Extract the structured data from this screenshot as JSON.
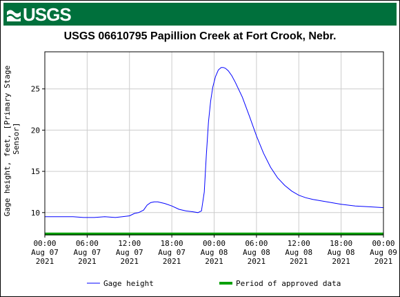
{
  "logo": {
    "text": "USGS",
    "bar_color": "#00703c"
  },
  "chart_data": {
    "type": "line",
    "title": "USGS 06610795 Papillion Creek at Fort Crook, Nebr.",
    "ylabel": "Gage height, feet, [Primary Stage\n Sensor]",
    "xlabel": "",
    "x_unit": "hours since Aug 07 2021 00:00",
    "xlim": [
      0,
      48
    ],
    "ylim": [
      7.3,
      29.5
    ],
    "grid": true,
    "x_ticks": [
      {
        "value": 0,
        "lines": [
          "00:00",
          "Aug 07",
          "2021"
        ]
      },
      {
        "value": 6,
        "lines": [
          "06:00",
          "Aug 07",
          "2021"
        ]
      },
      {
        "value": 12,
        "lines": [
          "12:00",
          "Aug 07",
          "2021"
        ]
      },
      {
        "value": 18,
        "lines": [
          "18:00",
          "Aug 07",
          "2021"
        ]
      },
      {
        "value": 24,
        "lines": [
          "00:00",
          "Aug 08",
          "2021"
        ]
      },
      {
        "value": 30,
        "lines": [
          "06:00",
          "Aug 08",
          "2021"
        ]
      },
      {
        "value": 36,
        "lines": [
          "12:00",
          "Aug 08",
          "2021"
        ]
      },
      {
        "value": 42,
        "lines": [
          "18:00",
          "Aug 08",
          "2021"
        ]
      },
      {
        "value": 48,
        "lines": [
          "00:00",
          "Aug 09",
          "2021"
        ]
      }
    ],
    "y_ticks": [
      {
        "value": 10,
        "label": "10"
      },
      {
        "value": 15,
        "label": "15"
      },
      {
        "value": 20,
        "label": "20"
      },
      {
        "value": 25,
        "label": "25"
      }
    ],
    "series": [
      {
        "name": "Gage height",
        "color": "#0000ff",
        "x": [
          0,
          2,
          4,
          5.5,
          7,
          8.5,
          10,
          11,
          12,
          12.7,
          13.3,
          14,
          14.5,
          15,
          15.5,
          16,
          17,
          18,
          19,
          20,
          21,
          21.7,
          22.2,
          22.6,
          22.9,
          23.2,
          23.5,
          23.8,
          24.2,
          24.6,
          25,
          25.3,
          25.6,
          26,
          26.5,
          27,
          28,
          29,
          30,
          31,
          32,
          33,
          34,
          35,
          36,
          37,
          38,
          40,
          42,
          44,
          46,
          48
        ],
        "y": [
          9.5,
          9.5,
          9.5,
          9.4,
          9.4,
          9.5,
          9.4,
          9.5,
          9.6,
          9.9,
          10.0,
          10.3,
          10.9,
          11.2,
          11.3,
          11.3,
          11.1,
          10.8,
          10.4,
          10.2,
          10.1,
          10.0,
          10.2,
          12.5,
          17.0,
          21.0,
          23.5,
          25.2,
          26.5,
          27.3,
          27.6,
          27.6,
          27.5,
          27.2,
          26.6,
          25.8,
          24.0,
          21.7,
          19.3,
          17.2,
          15.5,
          14.2,
          13.3,
          12.6,
          12.1,
          11.8,
          11.6,
          11.3,
          11.0,
          10.8,
          10.7,
          10.6
        ]
      }
    ],
    "approved_period": {
      "name": "Period of approved data",
      "color": "#00a000",
      "y": 7.4,
      "x_start": 0,
      "x_end": 48
    },
    "legend": {
      "placement": "bottom",
      "items": [
        "Gage height",
        "Period of approved data"
      ]
    }
  }
}
